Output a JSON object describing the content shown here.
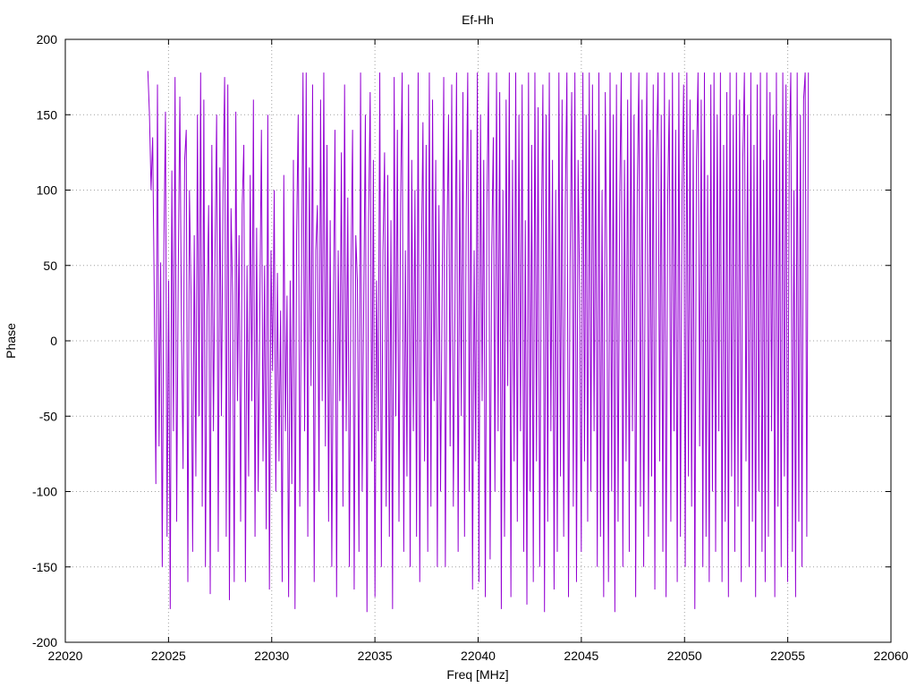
{
  "chart_data": {
    "type": "line",
    "title": "Ef-Hh",
    "xlabel": "Freq [MHz]",
    "ylabel": "Phase",
    "xlim": [
      22020,
      22060
    ],
    "ylim": [
      -200,
      200
    ],
    "xticks": [
      22020,
      22025,
      22030,
      22035,
      22040,
      22045,
      22050,
      22055,
      22060
    ],
    "yticks": [
      -200,
      -150,
      -100,
      -50,
      0,
      50,
      100,
      150,
      200
    ],
    "grid": true,
    "legend": "none",
    "series": [
      {
        "color": "#9400d3",
        "x_range": [
          22024.0,
          22056.0
        ],
        "y": [
          179,
          150,
          100,
          135,
          30,
          -95,
          170,
          -70,
          52,
          -150,
          60,
          152,
          -130,
          40,
          -178,
          113,
          -60,
          175,
          -120,
          45,
          162,
          10,
          -85,
          120,
          140,
          -160,
          100,
          30,
          -140,
          70,
          -90,
          150,
          -50,
          178,
          -110,
          160,
          -150,
          20,
          90,
          -168,
          130,
          -60,
          60,
          150,
          -140,
          115,
          -50,
          100,
          175,
          -130,
          170,
          -172,
          88,
          30,
          -160,
          152,
          -40,
          70,
          -120,
          90,
          130,
          -160,
          50,
          -90,
          110,
          -40,
          160,
          -130,
          75,
          -100,
          20,
          140,
          -80,
          50,
          -125,
          150,
          -165,
          60,
          -20,
          100,
          -100,
          45,
          -80,
          20,
          -160,
          110,
          -60,
          30,
          -170,
          40,
          -95,
          120,
          -178,
          70,
          150,
          -110,
          30,
          178,
          -60,
          178,
          -130,
          115,
          -30,
          170,
          -160,
          60,
          90,
          -100,
          160,
          -40,
          178,
          -70,
          130,
          -120,
          80,
          -150,
          20,
          140,
          -170,
          60,
          -40,
          125,
          -110,
          170,
          -60,
          95,
          -150,
          45,
          140,
          -165,
          70,
          40,
          -140,
          178,
          -100,
          30,
          150,
          -180,
          80,
          165,
          -80,
          120,
          -170,
          40,
          -60,
          178,
          -150,
          60,
          125,
          -110,
          110,
          -130,
          80,
          -178,
          175,
          -50,
          140,
          -120,
          90,
          178,
          -140,
          60,
          -90,
          170,
          -150,
          120,
          -60,
          100,
          -130,
          178,
          -160,
          50,
          145,
          -80,
          130,
          -140,
          178,
          -110,
          160,
          -40,
          120,
          -150,
          90,
          -100,
          30,
          175,
          -150,
          60,
          150,
          -70,
          170,
          -110,
          20,
          178,
          -140,
          120,
          -50,
          165,
          -130,
          80,
          178,
          -100,
          140,
          -165,
          60,
          -80,
          178,
          -160,
          150,
          -40,
          120,
          -170,
          90,
          178,
          -145,
          60,
          135,
          -100,
          178,
          -60,
          165,
          -178,
          100,
          -130,
          160,
          -30,
          178,
          -170,
          120,
          -80,
          178,
          -120,
          150,
          -60,
          170,
          -140,
          80,
          -175,
          178,
          -100,
          130,
          -160,
          178,
          -80,
          155,
          -150,
          60,
          170,
          -180,
          150,
          -120,
          178,
          -60,
          120,
          -165,
          100,
          -140,
          178,
          -90,
          160,
          -130,
          90,
          178,
          -170,
          50,
          165,
          -110,
          178,
          -160,
          120,
          30,
          -140,
          178,
          -80,
          150,
          -120,
          178,
          -100,
          170,
          -60,
          140,
          -150,
          178,
          -130,
          100,
          -170,
          165,
          40,
          -160,
          178,
          -100,
          150,
          -180,
          170,
          -120,
          90,
          178,
          -150,
          120,
          -80,
          160,
          -140,
          178,
          -60,
          150,
          -170,
          100,
          178,
          -110,
          160,
          -150,
          60,
          178,
          -130,
          140,
          -90,
          170,
          -165,
          120,
          178,
          -80,
          150,
          -140,
          178,
          -170,
          90,
          160,
          -120,
          178,
          -60,
          140,
          -160,
          178,
          -130,
          100,
          170,
          -150,
          178,
          -90,
          160,
          -110,
          140,
          -178,
          120,
          178,
          -70,
          160,
          -150,
          178,
          -130,
          110,
          -160,
          170,
          -100,
          178,
          -140,
          150,
          -60,
          178,
          -160,
          130,
          -120,
          165,
          -170,
          178,
          -90,
          150,
          -140,
          178,
          -110,
          160,
          -160,
          120,
          178,
          -80,
          150,
          -150,
          178,
          -120,
          130,
          -170,
          170,
          -100,
          178,
          -140,
          120,
          -160,
          178,
          -130,
          165,
          -60,
          150,
          -170,
          178,
          -110,
          140,
          -150,
          178,
          -90,
          170,
          -160,
          120,
          178,
          -140,
          100,
          -170,
          178,
          -120,
          150,
          -150,
          160,
          178,
          -130,
          178
        ]
      }
    ]
  }
}
